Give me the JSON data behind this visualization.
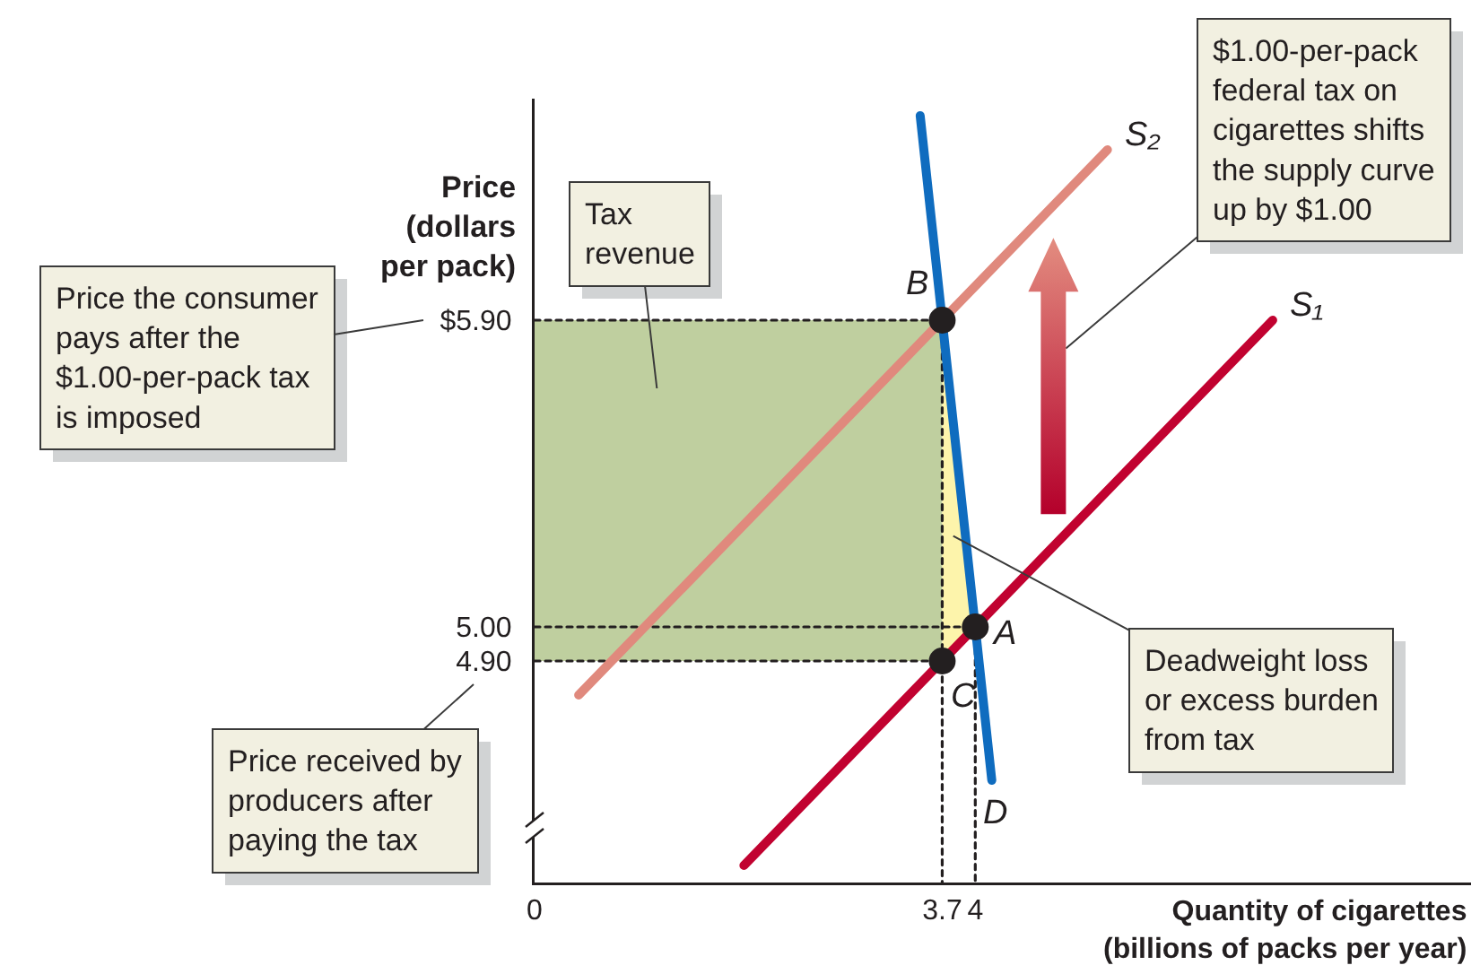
{
  "chart_data": {
    "type": "line",
    "xlabel": "Quantity of cigarettes (billions of packs per year)",
    "ylabel": "Price (dollars per pack)",
    "xlim": [
      0,
      8.5
    ],
    "xticks": [
      0,
      3.7,
      4
    ],
    "ylim": [
      4.25,
      6.55
    ],
    "yticks": [
      {
        "value": 4.9,
        "label": "4.90"
      },
      {
        "value": 5,
        "label": "5.00"
      },
      {
        "value": 5.9,
        "label": "$5.90"
      }
    ],
    "line_style": "solid",
    "series": [
      {
        "line_style": "dotted",
        "color": "#231f20",
        "x": [
          0,
          3.7,
          3.7
        ],
        "values": [
          5.9,
          5.9,
          4.25
        ]
      },
      {
        "line_style": "dotted",
        "color": "#231f20",
        "x": [
          0,
          4,
          4
        ],
        "values": [
          5.0,
          5.0,
          4.25
        ]
      },
      {
        "line_style": "dotted",
        "color": "#231f20",
        "x": [
          0,
          3.7
        ],
        "values": [
          4.9,
          4.9
        ]
      },
      {
        "name": "S₂",
        "color": "#e0897d",
        "x": [
          0.4,
          3.7,
          5.2
        ],
        "values": [
          4.8,
          5.9,
          6.4
        ]
      },
      {
        "name": "S₁",
        "color": "#c10230",
        "x": [
          1.9,
          3.7,
          4,
          6.7
        ],
        "values": [
          4.3,
          4.9,
          5.0,
          5.9
        ]
      },
      {
        "name": "D",
        "color": "#0f6cbf",
        "x": [
          3.5,
          3.7,
          4,
          4.15
        ],
        "values": [
          6.5,
          5.9,
          5.0,
          4.55
        ]
      },
      {
        "type": "scatter",
        "marker": "circle",
        "color": "#231f20",
        "x": [
          4,
          3.7,
          3.7
        ],
        "values": [
          5.0,
          5.9,
          4.9
        ]
      }
    ],
    "annotations": [
      "Price the consumer pays after the $1.00-per-pack tax is imposed",
      "Price received by producers after paying the tax",
      "$1.00-per-pack federal tax on cigarettes shifts the supply curve up by $1.00",
      "Tax revenue",
      "Deadweight loss or excess burden from tax",
      "A",
      "B",
      "C"
    ]
  }
}
